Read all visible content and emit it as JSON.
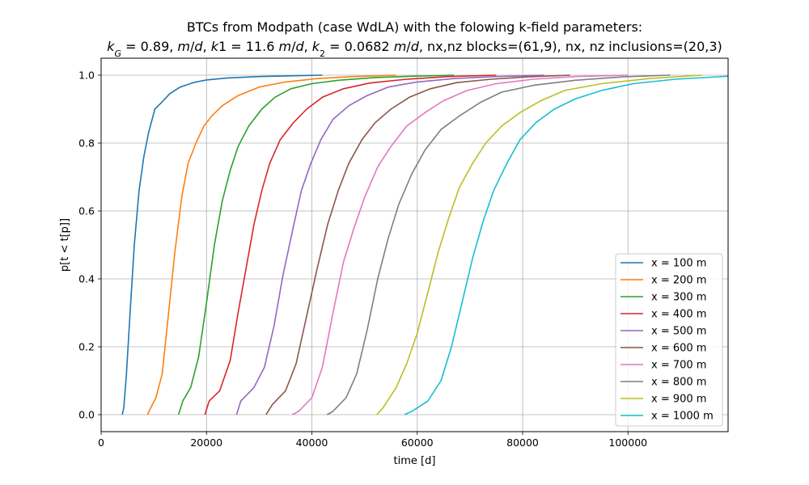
{
  "chart_data": {
    "type": "line",
    "title_line1": "BTCs from Modpath (case WdLA) with the folowing k-field parameters:",
    "title_line2": "kG = 0.89, m/d, k1 = 11.6 m/d, k2 = 0.0682 m/d, nx,nz blocks=(61,9), nx, nz inclusions=(20,3)",
    "xlabel": "time [d]",
    "ylabel": "p[t < t[p]]",
    "xlim": [
      0,
      119000
    ],
    "ylim": [
      -0.05,
      1.05
    ],
    "xticks": [
      0,
      20000,
      40000,
      60000,
      80000,
      100000
    ],
    "xtick_labels": [
      "0",
      "20000",
      "40000",
      "60000",
      "80000",
      "100000"
    ],
    "yticks": [
      0.0,
      0.2,
      0.4,
      0.6,
      0.8,
      1.0
    ],
    "ytick_labels": [
      "0.0",
      "0.2",
      "0.4",
      "0.6",
      "0.8",
      "1.0"
    ],
    "grid": true,
    "legend_position": "lower-right",
    "series": [
      {
        "name": "x = 100 m",
        "color": "#1f77b4",
        "x": [
          4000,
          4300,
          4800,
          5500,
          6300,
          7200,
          8100,
          9000,
          10200,
          11500,
          13000,
          15000,
          17500,
          20000,
          24000,
          30000,
          36000,
          42000
        ],
        "y": [
          0.0,
          0.02,
          0.12,
          0.3,
          0.5,
          0.66,
          0.76,
          0.83,
          0.9,
          0.92,
          0.945,
          0.965,
          0.978,
          0.986,
          0.992,
          0.996,
          0.998,
          1.0
        ]
      },
      {
        "name": "x = 200 m",
        "color": "#ff7f0e",
        "x": [
          8800,
          9400,
          10400,
          11600,
          12800,
          14000,
          15300,
          16500,
          18000,
          19500,
          21000,
          23000,
          26000,
          30000,
          35000,
          41000,
          48000,
          56000
        ],
        "y": [
          0.0,
          0.02,
          0.05,
          0.12,
          0.3,
          0.48,
          0.64,
          0.74,
          0.8,
          0.85,
          0.88,
          0.91,
          0.94,
          0.965,
          0.98,
          0.99,
          0.996,
          1.0
        ]
      },
      {
        "name": "x = 300 m",
        "color": "#2ca02c",
        "x": [
          14700,
          15500,
          17000,
          18500,
          20000,
          21500,
          23000,
          24500,
          26000,
          28000,
          30500,
          33000,
          36000,
          40000,
          45000,
          52000,
          59000,
          67000
        ],
        "y": [
          0.0,
          0.04,
          0.08,
          0.17,
          0.33,
          0.5,
          0.63,
          0.72,
          0.79,
          0.85,
          0.9,
          0.935,
          0.96,
          0.975,
          0.985,
          0.993,
          0.997,
          1.0
        ]
      },
      {
        "name": "x = 400 m",
        "color": "#d62728",
        "x": [
          19700,
          20500,
          22500,
          24500,
          26000,
          27500,
          29000,
          30500,
          32000,
          34000,
          36500,
          39000,
          42000,
          46000,
          51000,
          58000,
          66000,
          75000
        ],
        "y": [
          0.0,
          0.04,
          0.07,
          0.16,
          0.3,
          0.43,
          0.56,
          0.66,
          0.74,
          0.81,
          0.86,
          0.9,
          0.935,
          0.96,
          0.977,
          0.988,
          0.996,
          1.0
        ]
      },
      {
        "name": "x = 500 m",
        "color": "#9467bd",
        "x": [
          25700,
          26500,
          29000,
          31000,
          32800,
          34500,
          36300,
          38000,
          39800,
          41700,
          44000,
          47000,
          50500,
          54500,
          60000,
          67000,
          75000,
          84000
        ],
        "y": [
          0.0,
          0.04,
          0.08,
          0.14,
          0.26,
          0.41,
          0.54,
          0.66,
          0.74,
          0.81,
          0.87,
          0.91,
          0.94,
          0.965,
          0.98,
          0.99,
          0.996,
          1.0
        ]
      },
      {
        "name": "x = 600 m",
        "color": "#8c564b",
        "x": [
          31300,
          32500,
          35000,
          37000,
          39000,
          41000,
          43000,
          45000,
          47000,
          49500,
          52000,
          55000,
          58500,
          62500,
          67500,
          74000,
          81000,
          89000
        ],
        "y": [
          0.0,
          0.03,
          0.07,
          0.15,
          0.29,
          0.43,
          0.56,
          0.66,
          0.74,
          0.81,
          0.86,
          0.9,
          0.935,
          0.96,
          0.978,
          0.988,
          0.995,
          1.0
        ]
      },
      {
        "name": "x = 700 m",
        "color": "#e377c2",
        "x": [
          36300,
          37500,
          40000,
          42000,
          44000,
          46000,
          48000,
          50000,
          52500,
          55000,
          58000,
          61500,
          65000,
          69500,
          75000,
          82000,
          90000,
          100000
        ],
        "y": [
          0.0,
          0.01,
          0.05,
          0.14,
          0.3,
          0.45,
          0.55,
          0.64,
          0.73,
          0.79,
          0.85,
          0.89,
          0.925,
          0.955,
          0.975,
          0.988,
          0.996,
          1.0
        ]
      },
      {
        "name": "x = 800 m",
        "color": "#7f7f7f",
        "x": [
          42900,
          44000,
          46500,
          48500,
          50500,
          52500,
          54500,
          56500,
          59000,
          61500,
          64500,
          68000,
          72000,
          76000,
          82000,
          90000,
          99000,
          108000
        ],
        "y": [
          0.0,
          0.01,
          0.05,
          0.12,
          0.25,
          0.4,
          0.52,
          0.62,
          0.71,
          0.78,
          0.84,
          0.88,
          0.92,
          0.95,
          0.97,
          0.985,
          0.995,
          1.0
        ]
      },
      {
        "name": "x = 900 m",
        "color": "#bcbd22",
        "x": [
          52300,
          53500,
          56000,
          58000,
          60000,
          62000,
          64000,
          66000,
          68000,
          70500,
          73000,
          76000,
          79500,
          83500,
          88000,
          95000,
          104000,
          114000
        ],
        "y": [
          0.0,
          0.02,
          0.08,
          0.15,
          0.24,
          0.36,
          0.48,
          0.58,
          0.67,
          0.74,
          0.8,
          0.85,
          0.89,
          0.925,
          0.955,
          0.975,
          0.99,
          1.0
        ]
      },
      {
        "name": "x = 1000 m",
        "color": "#17becf",
        "x": [
          57600,
          59000,
          62000,
          64500,
          66500,
          68500,
          70500,
          72500,
          74500,
          77000,
          79500,
          82500,
          86000,
          90000,
          95000,
          101000,
          109000,
          119000
        ],
        "y": [
          0.0,
          0.01,
          0.04,
          0.1,
          0.2,
          0.33,
          0.46,
          0.57,
          0.66,
          0.74,
          0.81,
          0.86,
          0.9,
          0.93,
          0.955,
          0.975,
          0.988,
          0.997
        ]
      }
    ]
  }
}
